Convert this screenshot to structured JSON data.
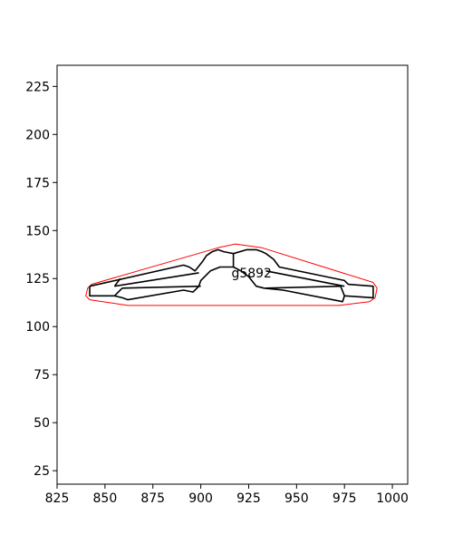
{
  "chart_data": {
    "type": "line",
    "title": "",
    "xlabel": "",
    "ylabel": "",
    "xlim": [
      825,
      1008
    ],
    "ylim": [
      18,
      236
    ],
    "grid": false,
    "x_ticks": [
      825,
      850,
      875,
      900,
      925,
      950,
      975,
      1000
    ],
    "y_ticks": [
      25,
      50,
      75,
      100,
      125,
      150,
      175,
      200,
      225
    ],
    "annotation": {
      "text": "g5892",
      "x": 916,
      "y": 128
    },
    "series": [
      {
        "color": "#ff0000",
        "points": [
          [
            843,
            122
          ],
          [
            909,
            141
          ],
          [
            918,
            143
          ],
          [
            932,
            141
          ],
          [
            990,
            123
          ],
          [
            992,
            120
          ],
          [
            991,
            115
          ],
          [
            988,
            113
          ],
          [
            972,
            111
          ],
          [
            862,
            111
          ],
          [
            842,
            114
          ],
          [
            840,
            116
          ],
          [
            841,
            120
          ],
          [
            843,
            122
          ]
        ]
      },
      {
        "color": "#000000",
        "points": [
          [
            842,
            121
          ],
          [
            891,
            132
          ],
          [
            894,
            131
          ],
          [
            897,
            129
          ],
          [
            901,
            134
          ],
          [
            903,
            137
          ],
          [
            906,
            139
          ],
          [
            909,
            140
          ],
          [
            912,
            139
          ],
          [
            917,
            138
          ],
          [
            924,
            140
          ],
          [
            926,
            140
          ],
          [
            929,
            140
          ],
          [
            932,
            139
          ],
          [
            934,
            138
          ],
          [
            938,
            135
          ],
          [
            941,
            131
          ],
          [
            975,
            124
          ],
          [
            977,
            122
          ],
          [
            990,
            121
          ],
          [
            990,
            115
          ],
          [
            975,
            116
          ],
          [
            974,
            113
          ],
          [
            943,
            119
          ],
          [
            933,
            120
          ],
          [
            929,
            121
          ],
          [
            925,
            126
          ],
          [
            921,
            129
          ],
          [
            917,
            131
          ],
          [
            910,
            131
          ],
          [
            905,
            129
          ],
          [
            900,
            124
          ],
          [
            899,
            121
          ],
          [
            896,
            118
          ],
          [
            891,
            119
          ],
          [
            862,
            114
          ],
          [
            859,
            115
          ],
          [
            855,
            116
          ],
          [
            842,
            116
          ],
          [
            842,
            121
          ]
        ]
      },
      {
        "color": "#000000",
        "points": [
          [
            855,
            121
          ],
          [
            858,
            125
          ]
        ]
      },
      {
        "color": "#000000",
        "points": [
          [
            855,
            121
          ],
          [
            899,
            128
          ]
        ]
      },
      {
        "color": "#000000",
        "points": [
          [
            855,
            116
          ],
          [
            859,
            120
          ]
        ]
      },
      {
        "color": "#000000",
        "points": [
          [
            859,
            120
          ],
          [
            900,
            121
          ]
        ]
      },
      {
        "color": "#000000",
        "points": [
          [
            917,
            131
          ],
          [
            917,
            138
          ]
        ]
      },
      {
        "color": "#000000",
        "points": [
          [
            975,
            121
          ],
          [
            934,
            129
          ]
        ]
      },
      {
        "color": "#000000",
        "points": [
          [
            975,
            116
          ],
          [
            973,
            121
          ]
        ]
      },
      {
        "color": "#000000",
        "points": [
          [
            973,
            121
          ],
          [
            934,
            120
          ]
        ]
      }
    ]
  }
}
